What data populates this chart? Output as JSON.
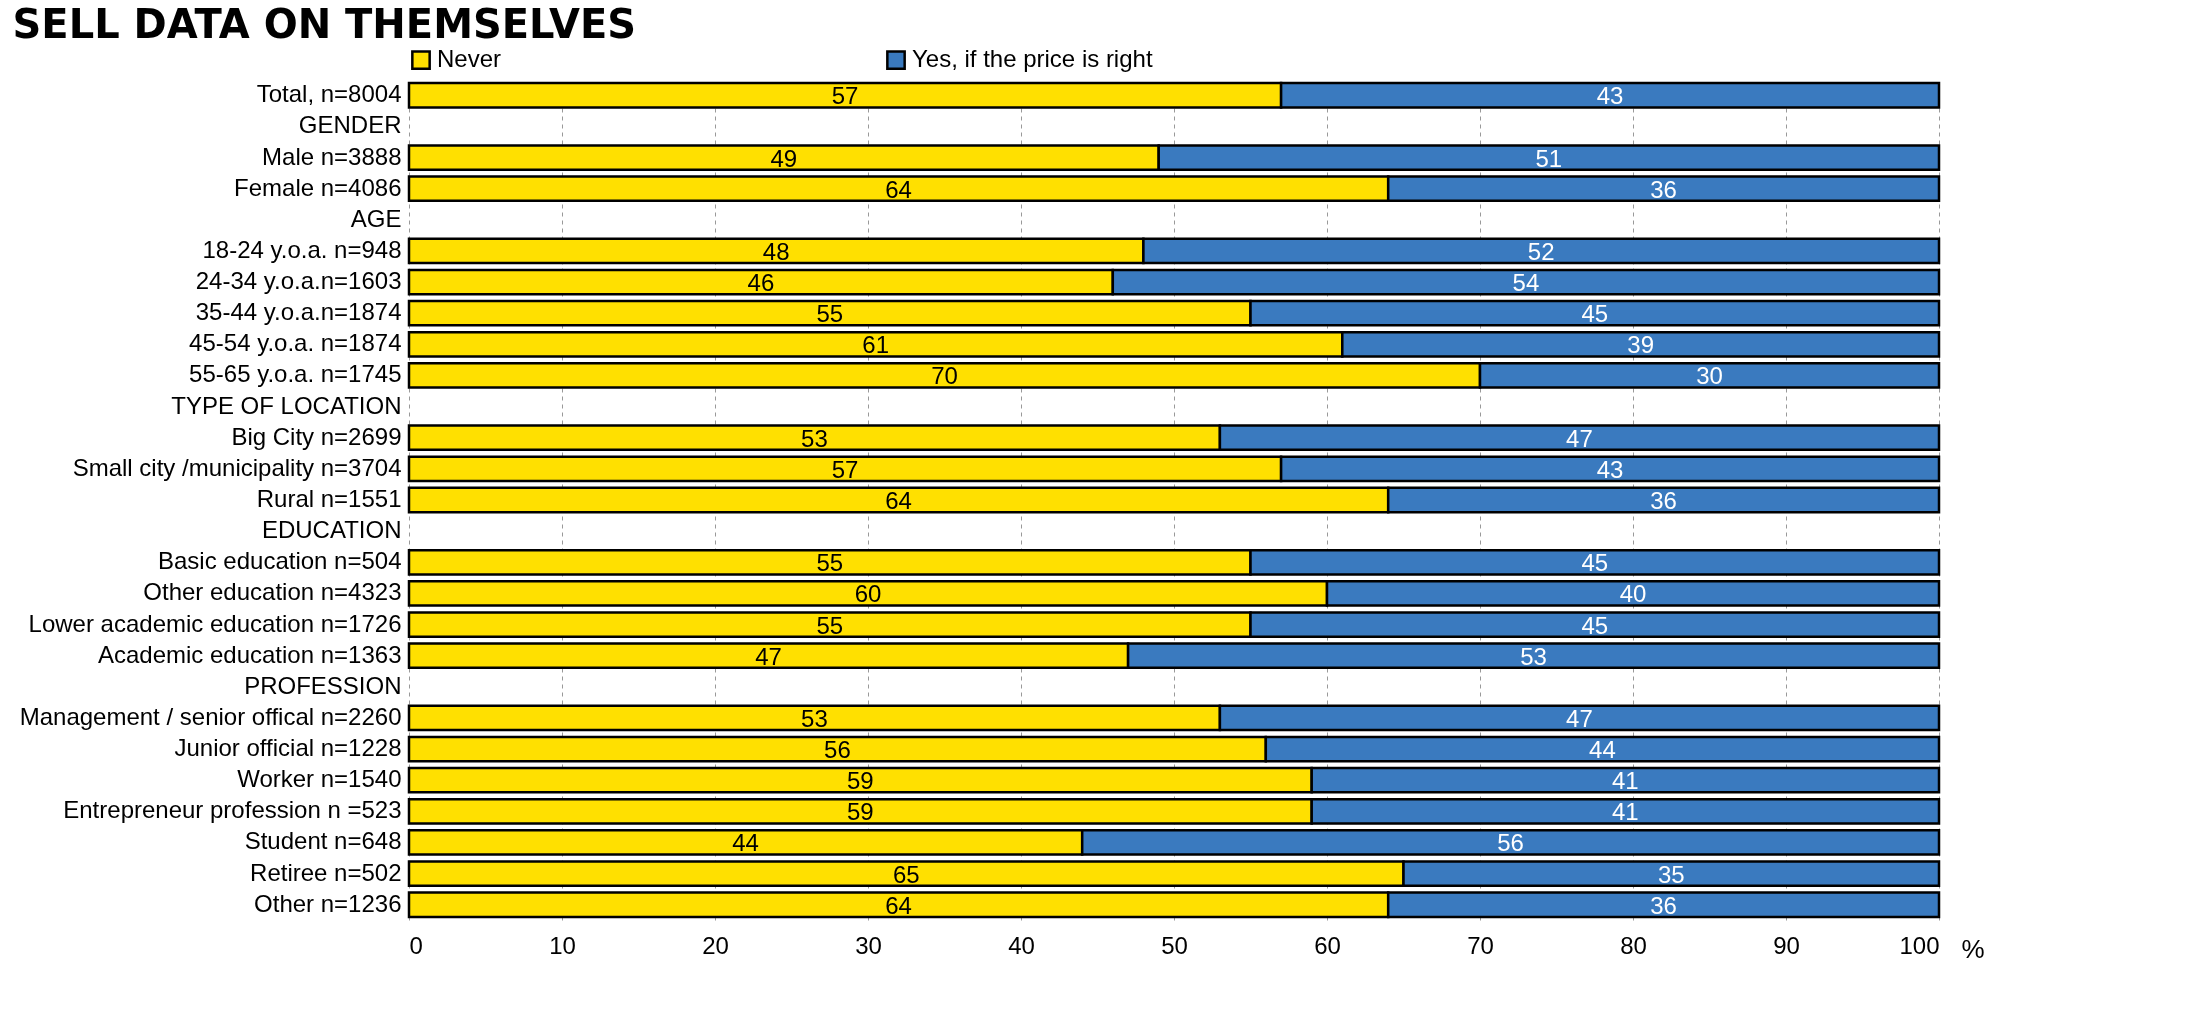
{
  "chart_data": {
    "type": "bar",
    "orientation": "horizontal",
    "stacked": true,
    "title": "SELL DATA ON THEMSELVES",
    "xlabel": "%",
    "categories": [
      "Total, n=8004",
      "GENDER",
      "Male n=3888",
      "Female n=4086",
      "AGE",
      "18-24 y.o.a. n=948",
      "24-34 y.o.a.n=1603",
      "35-44 y.o.a.n=1874",
      "45-54 y.o.a. n=1874",
      "55-65 y.o.a. n=1745",
      "TYPE OF LOCATION",
      "Big City  n=2699",
      "Small city /municipality n=3704",
      "Rural n=1551",
      "EDUCATION",
      "Basic education n=504",
      "Other education n=4323",
      "Lower academic education n=1726",
      "Academic education n=1363",
      "PROFESSION",
      "Management / senior offical  n=2260",
      "Junior official n=1228",
      "Worker n=1540",
      "Entrepreneur profession  n =523",
      "Student n=648",
      "Retiree n=502",
      "Other n=1236"
    ],
    "series": [
      {
        "name": "Never",
        "color": "#ffe000",
        "values": [
          57,
          null,
          49,
          64,
          null,
          48,
          46,
          55,
          61,
          70,
          null,
          53,
          57,
          64,
          null,
          55,
          60,
          55,
          47,
          null,
          53,
          56,
          59,
          59,
          44,
          65,
          64
        ]
      },
      {
        "name": "Yes, if the price is right",
        "color": "#3a7abf",
        "values": [
          43,
          null,
          51,
          36,
          null,
          52,
          54,
          45,
          39,
          30,
          null,
          47,
          43,
          36,
          null,
          45,
          40,
          45,
          53,
          null,
          47,
          44,
          41,
          41,
          56,
          35,
          36
        ]
      }
    ],
    "xlim": [
      0,
      100
    ],
    "xticks": [
      0,
      10,
      20,
      30,
      40,
      50,
      60,
      70,
      80,
      90,
      100
    ],
    "grid": "x",
    "legend": "top",
    "data_labels": true
  }
}
